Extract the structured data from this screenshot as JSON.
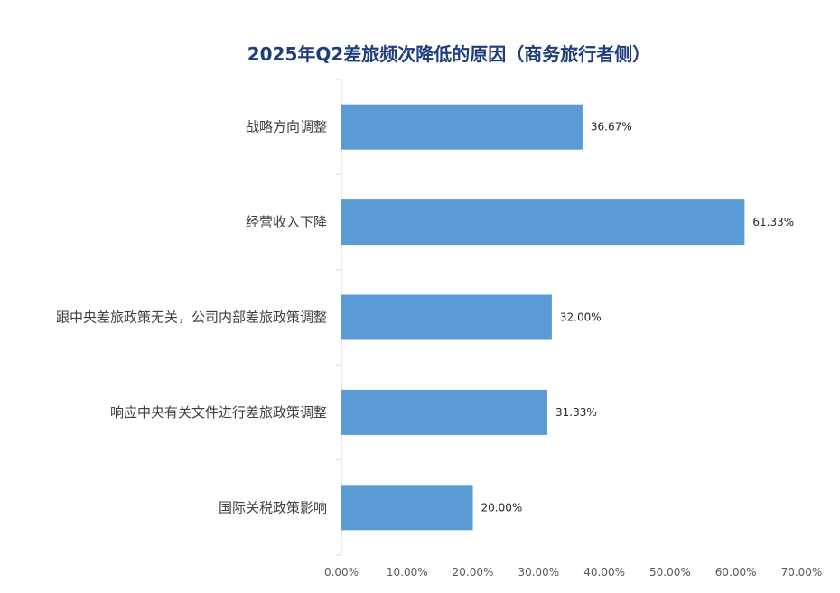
{
  "chart_data": {
    "type": "bar",
    "orientation": "horizontal",
    "title": "2025年Q2差旅频次降低的原因（商务旅行者侧）",
    "categories": [
      "战略方向调整",
      "经营收入下降",
      "跟中央差旅政策无关，公司内部差旅政策调整",
      "响应中央有关文件进行差旅政策调整",
      "国际关税政策影响"
    ],
    "values": [
      36.67,
      61.33,
      32.0,
      31.33,
      20.0
    ],
    "data_labels": [
      "36.67%",
      "61.33%",
      "32.00%",
      "31.33%",
      "20.00%"
    ],
    "xlim": [
      0,
      70
    ],
    "x_ticks": [
      0,
      10,
      20,
      30,
      40,
      50,
      60,
      70
    ],
    "x_tick_labels": [
      "0.00%",
      "10.00%",
      "20.00%",
      "30.00%",
      "40.00%",
      "50.00%",
      "60.00%",
      "70.00%"
    ],
    "xlabel": "",
    "ylabel": "",
    "grid": false,
    "legend": "none",
    "bar_color": "#5b9bd5",
    "title_color": "#1f3d7a"
  }
}
